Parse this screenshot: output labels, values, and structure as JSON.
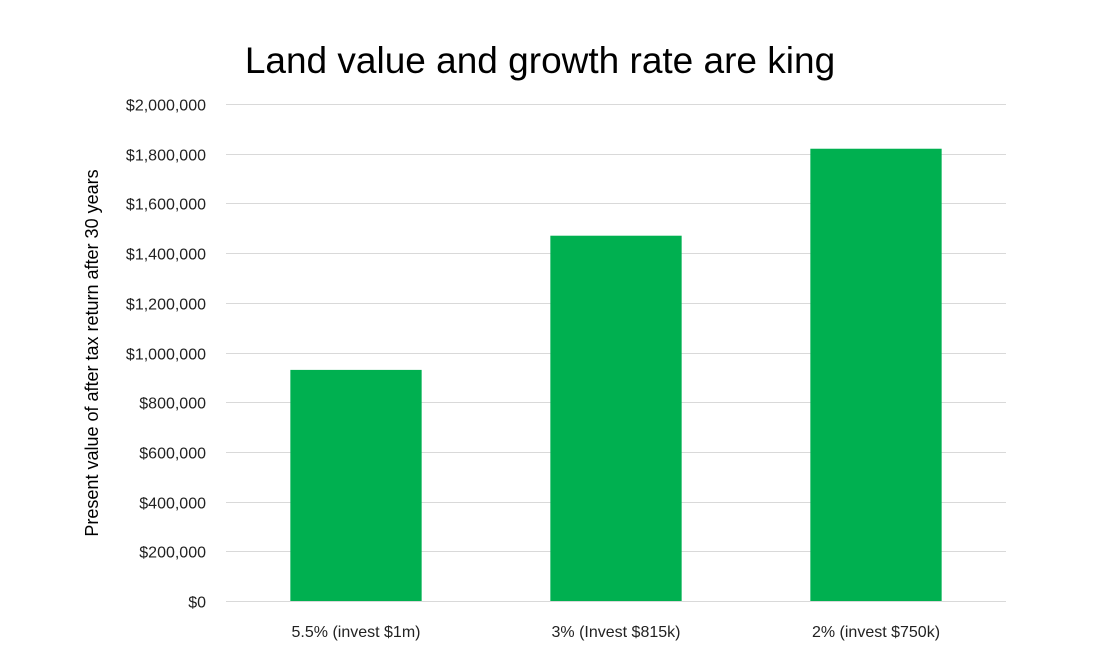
{
  "chart_data": {
    "type": "bar",
    "title": "Land value and growth rate are king",
    "xlabel": "",
    "ylabel": "Present value of after tax return after 30 years",
    "categories": [
      "5.5% (invest $1m)",
      "3% (Invest $815k)",
      "2% (invest $750k)"
    ],
    "values": [
      930000,
      1470000,
      1820000
    ],
    "ylim": [
      0,
      2000000
    ],
    "yticks": [
      0,
      200000,
      400000,
      600000,
      800000,
      1000000,
      1200000,
      1400000,
      1600000,
      1800000,
      2000000
    ],
    "ytick_labels": [
      "$0",
      "$200,000",
      "$400,000",
      "$600,000",
      "$800,000",
      "$1,000,000",
      "$1,200,000",
      "$1,400,000",
      "$1,600,000",
      "$1,800,000",
      "$2,000,000"
    ],
    "grid": true,
    "bar_color": "#00B050",
    "grid_color": "#D9D9D9"
  }
}
